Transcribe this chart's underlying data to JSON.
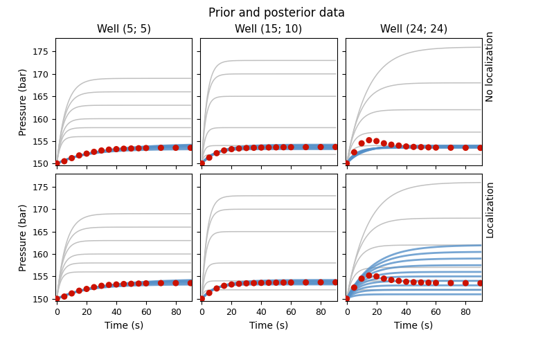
{
  "title": "Prior and posterior data",
  "col_titles": [
    "Well (5; 5)",
    "Well (15; 10)",
    "Well (24; 24)"
  ],
  "row_labels": [
    "No localization",
    "Localization"
  ],
  "xlabel": "Time (s)",
  "ylabel": "Pressure (bar)",
  "ylim": [
    149.5,
    178
  ],
  "xlim": [
    -1,
    91
  ],
  "yticks": [
    150,
    155,
    160,
    165,
    170,
    175
  ],
  "xticks": [
    0,
    20,
    40,
    60,
    80
  ],
  "t_max": 90,
  "prior_color": "#c0c0c0",
  "posterior_color": "#5590c8",
  "obs_color": "#cc1100",
  "obs_markersize": 6.5,
  "prior_linewidth": 1.1,
  "posterior_linewidth": 2.0,
  "prior_curves": {
    "col0": {
      "p_infs": [
        156,
        158,
        160,
        163,
        166,
        169
      ],
      "taus": [
        2.5,
        3.0,
        3.5,
        4.0,
        5.0,
        6.0
      ]
    },
    "col1": {
      "p_infs": [
        152,
        154,
        158,
        165,
        170,
        173
      ],
      "taus": [
        1.2,
        1.5,
        2.0,
        2.5,
        3.0,
        3.5
      ]
    },
    "col2": {
      "p_infs": [
        152,
        154,
        157,
        162,
        168,
        176
      ],
      "taus": [
        2.0,
        3.0,
        4.0,
        6.0,
        9.0,
        14.0
      ]
    }
  },
  "posterior_noloc": {
    "col0": {
      "p_infs": [
        153.2,
        153.5,
        153.8,
        154.0,
        154.2,
        154.4
      ],
      "taus": [
        20,
        22,
        24,
        26,
        28,
        30
      ]
    },
    "col1": {
      "p_infs": [
        153.2,
        153.4,
        153.6,
        153.8,
        154.0,
        154.2
      ],
      "taus": [
        7,
        8,
        9,
        10,
        11,
        12
      ]
    },
    "col2": {
      "p_infs": [
        153.5,
        153.6,
        153.7,
        153.8,
        153.9,
        154.0
      ],
      "taus": [
        6,
        7,
        8,
        9,
        10,
        11
      ]
    }
  },
  "posterior_loc": {
    "col0": {
      "p_infs": [
        153.2,
        153.5,
        153.8,
        154.0,
        154.2,
        154.4
      ],
      "taus": [
        20,
        22,
        24,
        26,
        28,
        30
      ]
    },
    "col1": {
      "p_infs": [
        153.2,
        153.4,
        153.6,
        153.8,
        154.0,
        154.2
      ],
      "taus": [
        7,
        8,
        9,
        10,
        11,
        12
      ]
    },
    "col2": {
      "p_infs": [
        151.0,
        152.0,
        153.0,
        154.0,
        155.0,
        156.0,
        157.5,
        159.0,
        160.5,
        162.0
      ],
      "taus": [
        5,
        6,
        7,
        8,
        9,
        10,
        12,
        14,
        16,
        18
      ]
    }
  },
  "obs": {
    "col0": {
      "t": [
        0,
        5,
        10,
        15,
        20,
        25,
        30,
        35,
        40,
        45,
        50,
        55,
        60,
        70,
        80,
        90
      ],
      "p": [
        150.0,
        150.5,
        151.2,
        151.8,
        152.2,
        152.6,
        152.9,
        153.1,
        153.2,
        153.3,
        153.35,
        153.4,
        153.45,
        153.5,
        153.5,
        153.5
      ]
    },
    "col1": {
      "t": [
        0,
        5,
        10,
        15,
        20,
        25,
        30,
        35,
        40,
        45,
        50,
        55,
        60,
        70,
        80,
        90
      ],
      "p": [
        150.0,
        151.3,
        152.3,
        152.9,
        153.2,
        153.35,
        153.45,
        153.5,
        153.55,
        153.58,
        153.6,
        153.62,
        153.63,
        153.65,
        153.67,
        153.68
      ]
    },
    "col2": {
      "t": [
        0,
        5,
        10,
        15,
        20,
        25,
        30,
        35,
        40,
        45,
        50,
        55,
        60,
        70,
        80,
        90
      ],
      "p": [
        150.0,
        152.5,
        154.5,
        155.2,
        155.0,
        154.5,
        154.2,
        154.0,
        153.8,
        153.7,
        153.65,
        153.6,
        153.55,
        153.52,
        153.5,
        153.48
      ]
    }
  }
}
